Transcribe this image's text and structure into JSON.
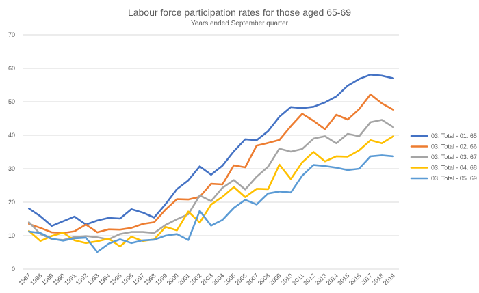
{
  "chart_data": {
    "type": "line",
    "title": "Labour force participation rates for those aged 65-69",
    "subtitle": "Years ended September quarter",
    "xlabel": "",
    "ylabel": "",
    "ylim": [
      0,
      70
    ],
    "yticks": [
      0,
      10,
      20,
      30,
      40,
      50,
      60,
      70
    ],
    "grid": true,
    "legend_position": "right",
    "categories": [
      "1987",
      "1988",
      "1989",
      "1990",
      "1991",
      "1992",
      "1993",
      "1994",
      "1995",
      "1996",
      "1997",
      "1998",
      "1999",
      "2000",
      "2001",
      "2002",
      "2003",
      "2004",
      "2005",
      "2006",
      "2007",
      "2008",
      "2009",
      "2010",
      "2011",
      "2012",
      "2013",
      "2014",
      "2015",
      "2016",
      "2017",
      "2018",
      "2019"
    ],
    "series": [
      {
        "name": "03. Total - 01. 65",
        "color": "#4472c4",
        "values": [
          18.1,
          15.8,
          12.9,
          14.3,
          15.7,
          13.3,
          14.5,
          15.3,
          15.1,
          17.9,
          16.9,
          15.4,
          19.4,
          23.9,
          26.5,
          30.7,
          28.2,
          30.9,
          35.2,
          38.8,
          38.5,
          41.2,
          45.5,
          48.4,
          48.1,
          48.5,
          49.8,
          51.6,
          54.8,
          56.8,
          58.1,
          57.8,
          57.0
        ]
      },
      {
        "name": "03. Total - 02. 66",
        "color": "#ed7d31",
        "values": [
          13.5,
          12.3,
          11.0,
          10.8,
          11.3,
          13.3,
          11.0,
          11.9,
          11.8,
          12.3,
          13.5,
          14.0,
          17.8,
          20.9,
          20.8,
          21.6,
          25.5,
          25.3,
          31.0,
          30.4,
          36.9,
          37.7,
          38.6,
          42.7,
          46.4,
          44.3,
          41.8,
          46.1,
          44.7,
          47.8,
          52.2,
          49.5,
          47.6
        ]
      },
      {
        "name": "03. Total - 03. 67",
        "color": "#a5a5a5",
        "values": [
          14.0,
          10.5,
          9.0,
          8.7,
          9.6,
          9.9,
          9.5,
          8.9,
          10.5,
          11.1,
          11.1,
          10.8,
          13.2,
          14.9,
          16.4,
          22.0,
          20.3,
          24.3,
          26.6,
          23.8,
          27.6,
          30.6,
          36.0,
          35.1,
          35.9,
          39.0,
          39.7,
          37.6,
          40.4,
          39.7,
          43.9,
          44.6,
          42.4
        ]
      },
      {
        "name": "03. Total - 04. 68",
        "color": "#ffc000",
        "values": [
          11.4,
          8.4,
          9.9,
          10.9,
          8.6,
          7.8,
          8.3,
          9.1,
          6.8,
          9.7,
          8.4,
          8.9,
          12.6,
          11.6,
          17.2,
          13.9,
          19.3,
          21.6,
          24.5,
          21.5,
          24.0,
          23.9,
          31.2,
          26.9,
          31.9,
          35.0,
          32.2,
          33.7,
          33.6,
          35.5,
          38.5,
          37.6,
          39.7
        ]
      },
      {
        "name": "03. Total - 05. 69",
        "color": "#5b9bd5",
        "values": [
          11.2,
          10.8,
          9.1,
          8.5,
          9.2,
          9.4,
          5.1,
          7.6,
          8.9,
          7.8,
          8.6,
          8.8,
          10.0,
          10.5,
          8.7,
          17.4,
          13.0,
          14.7,
          18.3,
          20.7,
          19.3,
          22.6,
          23.2,
          22.9,
          27.9,
          31.1,
          30.8,
          30.3,
          29.6,
          30.0,
          33.7,
          34.0,
          33.7
        ]
      }
    ]
  }
}
